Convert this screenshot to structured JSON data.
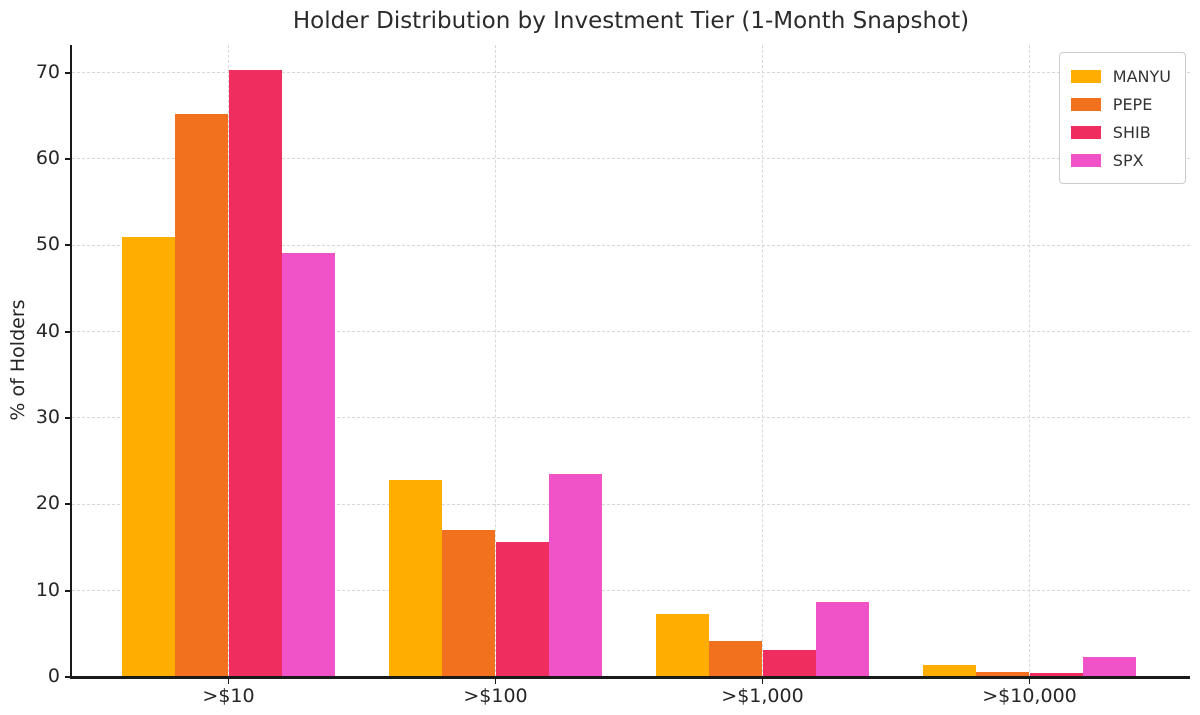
{
  "chart_data": {
    "type": "bar",
    "title": "Holder Distribution by Investment Tier (1-Month Snapshot)",
    "xlabel": "",
    "ylabel": "% of Holders",
    "categories": [
      ">$10",
      ">$100",
      ">$1,000",
      ">$10,000"
    ],
    "series": [
      {
        "name": "MANYU",
        "color": "#FFAE00",
        "values": [
          51.0,
          22.8,
          7.3,
          1.4
        ]
      },
      {
        "name": "PEPE",
        "color": "#F2711F",
        "values": [
          65.2,
          17.0,
          4.2,
          0.6
        ]
      },
      {
        "name": "SHIB",
        "color": "#EF2D5E",
        "values": [
          70.3,
          15.6,
          3.1,
          0.5
        ]
      },
      {
        "name": "SPX",
        "color": "#F052C8",
        "values": [
          49.1,
          23.5,
          8.7,
          2.3
        ]
      }
    ],
    "yticks": [
      0,
      10,
      20,
      30,
      40,
      50,
      60,
      70
    ],
    "ylim": [
      0,
      73.2
    ],
    "grid": {
      "horizontal": true,
      "vertical": true,
      "line_style": "dashed",
      "color": "#d8d8d8"
    },
    "legend": {
      "position": "upper right"
    },
    "spine_color": "#1a1a1a",
    "background": "#ffffff"
  }
}
